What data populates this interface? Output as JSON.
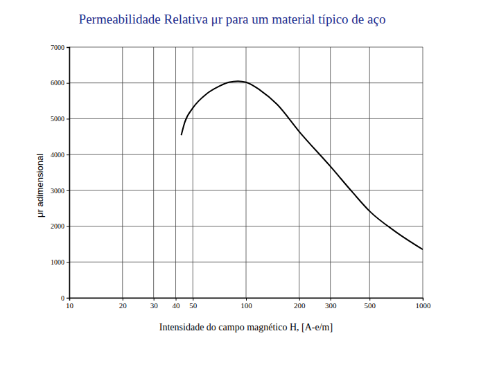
{
  "chart_data": {
    "type": "line",
    "title": "Permeabilidade Relativa μr para um material típico de aço",
    "x_label": "Intensidade do campo magnético H, [A-e/m]",
    "y_label": "μr adimensional",
    "x": [
      43,
      45,
      50,
      60,
      70,
      80,
      90,
      100,
      120,
      150,
      200,
      300,
      400,
      500,
      700,
      1000
    ],
    "values": [
      4540,
      4900,
      5300,
      5700,
      5900,
      6020,
      6050,
      6020,
      5800,
      5400,
      4640,
      3670,
      2950,
      2420,
      1850,
      1350
    ],
    "color": "#000000",
    "log": "x",
    "xlim": [
      10,
      1000
    ],
    "xticks": [
      10,
      20,
      30,
      40,
      50,
      100,
      200,
      300,
      500,
      1000
    ],
    "ylim": [
      0,
      7000
    ],
    "yticks": [
      0,
      1000,
      2000,
      3000,
      4000,
      5000,
      6000,
      7000
    ],
    "grid": true
  }
}
